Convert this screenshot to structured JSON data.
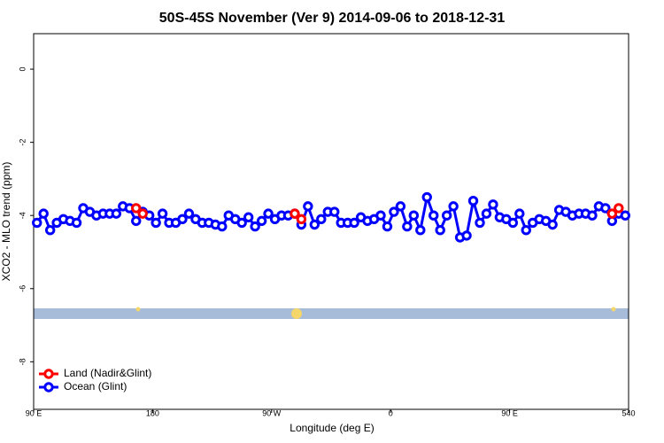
{
  "chart_data": {
    "type": "line",
    "title": "50S-45S November (Ver 9)   2014-09-06 to 2018-12-31",
    "x_label": "Longitude (deg E)",
    "y_label": "XCO2 - MLO trend (ppm)",
    "x": [
      92.5,
      97.5,
      102.5,
      107.5,
      112.5,
      117.5,
      122.5,
      127.5,
      132.5,
      137.5,
      142.5,
      147.5,
      152.5,
      157.5,
      162.5,
      167.5,
      172.5,
      177.5,
      182.5,
      187.5,
      192.5,
      197.5,
      202.5,
      207.5,
      212.5,
      217.5,
      222.5,
      227.5,
      232.5,
      237.5,
      242.5,
      247.5,
      252.5,
      257.5,
      262.5,
      267.5,
      272.5,
      277.5,
      282.5,
      287.5,
      292.5,
      297.5,
      302.5,
      307.5,
      312.5,
      317.5,
      322.5,
      327.5,
      332.5,
      337.5,
      342.5,
      347.5,
      352.5,
      357.5,
      362.5,
      367.5,
      372.5,
      377.5,
      382.5,
      387.5,
      392.5,
      397.5,
      402.5,
      407.5,
      412.5,
      417.5,
      422.5,
      427.5,
      432.5,
      437.5,
      442.5,
      447.5,
      452.5,
      457.5,
      462.5,
      467.5,
      472.5,
      477.5,
      482.5,
      487.5,
      492.5,
      497.5,
      502.5,
      507.5,
      512.5,
      517.5,
      522.5,
      527.5,
      532.5,
      537.5
    ],
    "series": [
      {
        "name": "Land (Nadir&Glint)",
        "color": "#ff0000",
        "values": [
          null,
          null,
          null,
          null,
          null,
          null,
          null,
          null,
          null,
          null,
          null,
          null,
          null,
          null,
          null,
          -3.8,
          -3.95,
          null,
          null,
          null,
          null,
          null,
          null,
          null,
          null,
          null,
          null,
          null,
          null,
          null,
          null,
          null,
          null,
          null,
          null,
          null,
          null,
          null,
          null,
          -3.95,
          -4.1,
          null,
          null,
          null,
          null,
          null,
          null,
          null,
          null,
          null,
          null,
          null,
          null,
          null,
          null,
          null,
          null,
          null,
          null,
          null,
          null,
          null,
          null,
          null,
          null,
          null,
          null,
          null,
          null,
          null,
          null,
          null,
          null,
          null,
          null,
          null,
          null,
          null,
          null,
          null,
          null,
          null,
          null,
          null,
          null,
          null,
          null,
          -3.95,
          -3.8,
          null
        ]
      },
      {
        "name": "Ocean (Glint)",
        "color": "#0000ff",
        "values": [
          -4.2,
          -3.95,
          -4.4,
          -4.2,
          -4.1,
          -4.15,
          -4.2,
          -3.8,
          -3.9,
          -4.0,
          -3.95,
          -3.95,
          -3.95,
          -3.75,
          -3.8,
          -4.15,
          -3.9,
          -4.0,
          -4.2,
          -3.95,
          -4.2,
          -4.2,
          -4.1,
          -3.95,
          -4.1,
          -4.2,
          -4.2,
          -4.25,
          -4.3,
          -4.0,
          -4.1,
          -4.2,
          -4.05,
          -4.3,
          -4.15,
          -3.95,
          -4.1,
          -4.0,
          -4.0,
          -3.95,
          -4.25,
          -3.75,
          -4.25,
          -4.1,
          -3.9,
          -3.9,
          -4.2,
          -4.2,
          -4.2,
          -4.05,
          -4.15,
          -4.1,
          -4.0,
          -4.3,
          -3.9,
          -3.75,
          -4.3,
          -4.0,
          -4.4,
          -3.5,
          -4.0,
          -4.4,
          -4.0,
          -3.75,
          -4.6,
          -4.55,
          -3.6,
          -4.2,
          -3.95,
          -3.7,
          -4.05,
          -4.1,
          -4.2,
          -3.95,
          -4.4,
          -4.2,
          -4.1,
          -4.15,
          -4.25,
          -3.85,
          -3.9,
          -4.0,
          -3.95,
          -3.95,
          -4.0,
          -3.75,
          -3.8,
          -4.15,
          -3.95,
          -4.0
        ]
      }
    ],
    "xlim": [
      90,
      540
    ],
    "xticks": [
      {
        "value": 90,
        "label": "90 E"
      },
      180,
      {
        "value": 270,
        "label": "90 W"
      },
      {
        "value": 360,
        "label": "0"
      },
      {
        "value": 450,
        "label": "90 E"
      },
      540
    ],
    "ylim": [
      -9.3,
      0.97
    ],
    "yticks": [
      0,
      -2,
      -4,
      -6,
      -8
    ],
    "legend": "bottom-left"
  }
}
